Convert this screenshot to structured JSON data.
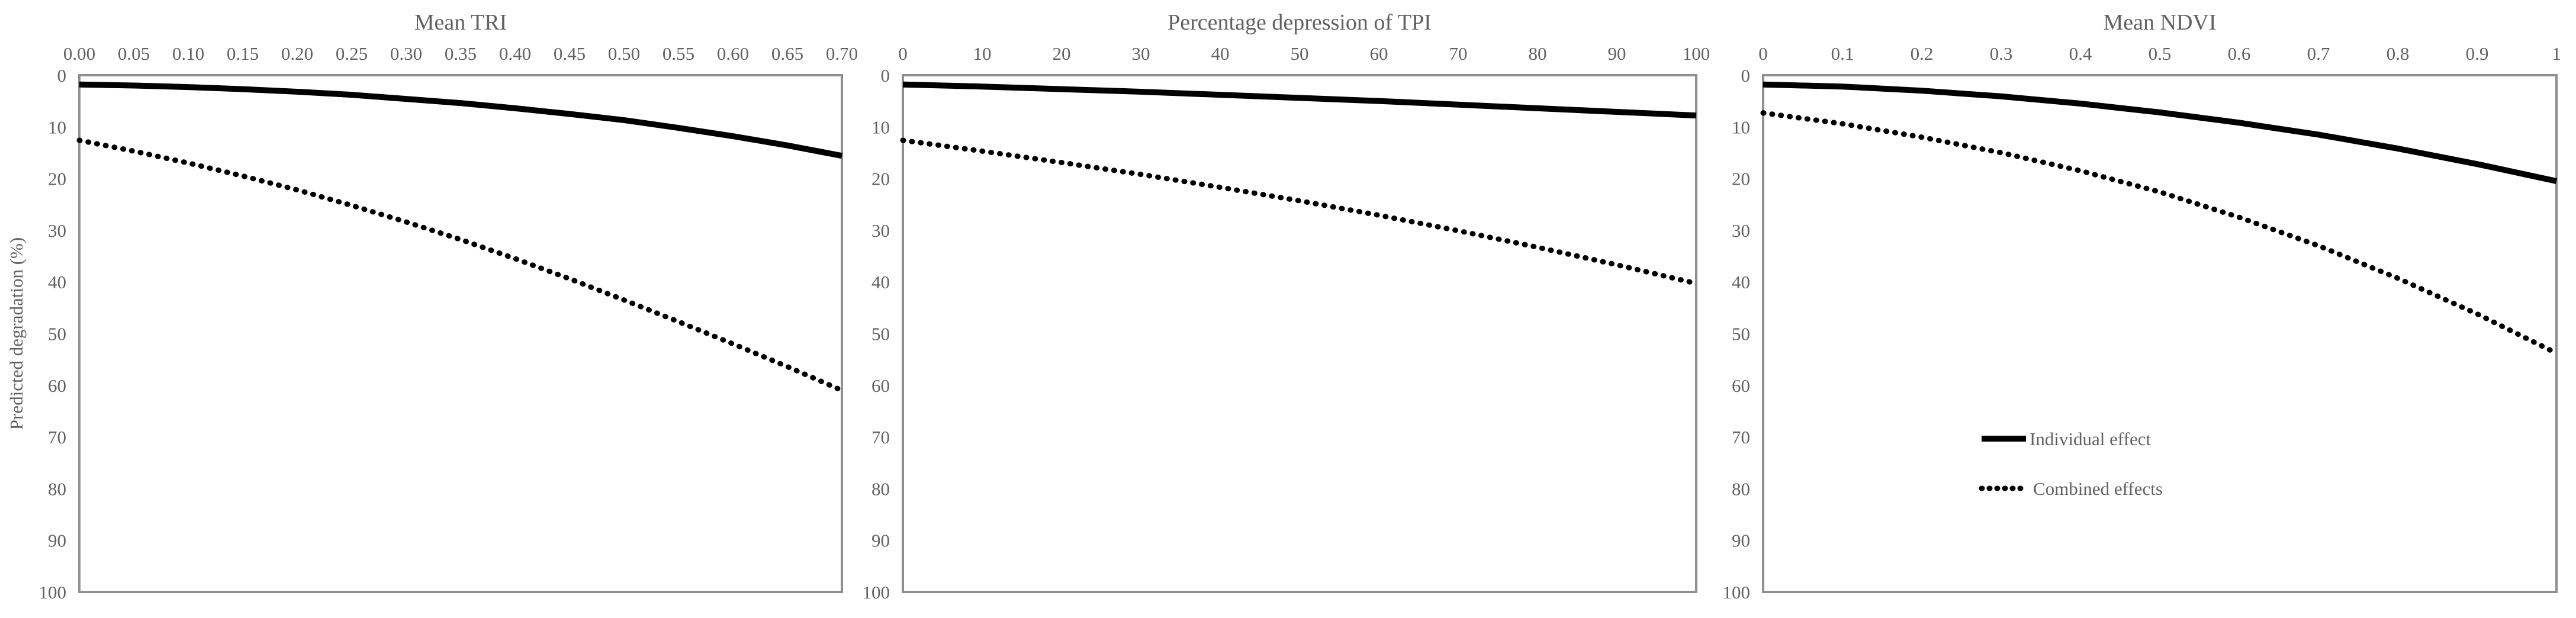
{
  "figure": {
    "ylabel": "Predicted degradation (%)",
    "colors": {
      "curve": "#000000",
      "frame": "#8f8f8f",
      "text": "#616161"
    },
    "legend": {
      "position": "inside-third-panel",
      "items": [
        {
          "label": "Individual effect",
          "style": "solid"
        },
        {
          "label": "Combined effects",
          "style": "dotted"
        }
      ]
    }
  },
  "chart_data": [
    {
      "type": "line",
      "title": "Mean TRI",
      "xlabel": "Mean TRI",
      "ylabel": "Predicted degradation (%)",
      "x_axis_position": "top",
      "y_inverted": true,
      "grid": false,
      "xlim": [
        0,
        0.7
      ],
      "ylim": [
        0,
        100
      ],
      "x_ticks": [
        "0.00",
        "0.05",
        "0.10",
        "0.15",
        "0.20",
        "0.25",
        "0.30",
        "0.35",
        "0.40",
        "0.45",
        "0.50",
        "0.55",
        "0.60",
        "0.65",
        "0.70"
      ],
      "y_ticks": [
        "0",
        "10",
        "20",
        "30",
        "40",
        "50",
        "60",
        "70",
        "80",
        "90",
        "100"
      ],
      "series": [
        {
          "name": "Individual effect",
          "style": "solid",
          "x": [
            0.0,
            0.05,
            0.1,
            0.15,
            0.2,
            0.25,
            0.3,
            0.35,
            0.4,
            0.45,
            0.5,
            0.55,
            0.6,
            0.65,
            0.7
          ],
          "y": [
            1.8,
            2.0,
            2.3,
            2.7,
            3.2,
            3.8,
            4.6,
            5.4,
            6.4,
            7.5,
            8.7,
            10.2,
            11.8,
            13.6,
            15.6
          ]
        },
        {
          "name": "Combined effects",
          "style": "dotted",
          "x": [
            0.0,
            0.05,
            0.1,
            0.15,
            0.2,
            0.25,
            0.3,
            0.35,
            0.4,
            0.45,
            0.5,
            0.55,
            0.6,
            0.65,
            0.7
          ],
          "y": [
            12.6,
            14.7,
            17.0,
            19.5,
            22.2,
            25.2,
            28.4,
            31.8,
            35.5,
            39.4,
            43.5,
            47.7,
            52.0,
            56.4,
            61.0
          ]
        }
      ]
    },
    {
      "type": "line",
      "title": "Percentage depression of TPI",
      "xlabel": "Percentage depression of TPI",
      "ylabel": "Predicted degradation (%)",
      "x_axis_position": "top",
      "y_inverted": true,
      "grid": false,
      "xlim": [
        0,
        100
      ],
      "ylim": [
        0,
        100
      ],
      "x_ticks": [
        "0",
        "10",
        "20",
        "30",
        "40",
        "50",
        "60",
        "70",
        "80",
        "90",
        "100"
      ],
      "y_ticks": [
        "0",
        "10",
        "20",
        "30",
        "40",
        "50",
        "60",
        "70",
        "80",
        "90",
        "100"
      ],
      "series": [
        {
          "name": "Individual effect",
          "style": "solid",
          "x": [
            0,
            10,
            20,
            30,
            40,
            50,
            60,
            70,
            80,
            90,
            100
          ],
          "y": [
            1.8,
            2.2,
            2.7,
            3.2,
            3.8,
            4.4,
            5.0,
            5.7,
            6.4,
            7.1,
            7.8
          ]
        },
        {
          "name": "Combined effects",
          "style": "dotted",
          "x": [
            0,
            10,
            20,
            30,
            40,
            50,
            60,
            70,
            80,
            90,
            100
          ],
          "y": [
            12.6,
            14.7,
            16.9,
            19.2,
            21.7,
            24.3,
            27.1,
            30.1,
            33.3,
            36.7,
            40.3
          ]
        }
      ]
    },
    {
      "type": "line",
      "title": "Mean NDVI",
      "xlabel": "Mean NDVI",
      "ylabel": "Predicted degradation (%)",
      "x_axis_position": "top",
      "y_inverted": true,
      "grid": false,
      "xlim": [
        0,
        1
      ],
      "ylim": [
        0,
        100
      ],
      "x_ticks": [
        "0",
        "0.1",
        "0.2",
        "0.3",
        "0.4",
        "0.5",
        "0.6",
        "0.7",
        "0.8",
        "0.9",
        "1"
      ],
      "y_ticks": [
        "0",
        "10",
        "20",
        "30",
        "40",
        "50",
        "60",
        "70",
        "80",
        "90",
        "100"
      ],
      "series": [
        {
          "name": "Individual effect",
          "style": "solid",
          "x": [
            0,
            0.1,
            0.2,
            0.3,
            0.4,
            0.5,
            0.6,
            0.7,
            0.8,
            0.9,
            1.0
          ],
          "y": [
            1.8,
            2.2,
            3.0,
            4.1,
            5.5,
            7.2,
            9.2,
            11.5,
            14.2,
            17.2,
            20.5
          ]
        },
        {
          "name": "Combined effects",
          "style": "dotted",
          "x": [
            0,
            0.1,
            0.2,
            0.3,
            0.4,
            0.5,
            0.6,
            0.7,
            0.8,
            0.9,
            1.0
          ],
          "y": [
            7.3,
            9.4,
            12.0,
            15.0,
            18.5,
            22.6,
            27.5,
            33.0,
            39.3,
            46.2,
            53.8
          ]
        }
      ]
    }
  ]
}
